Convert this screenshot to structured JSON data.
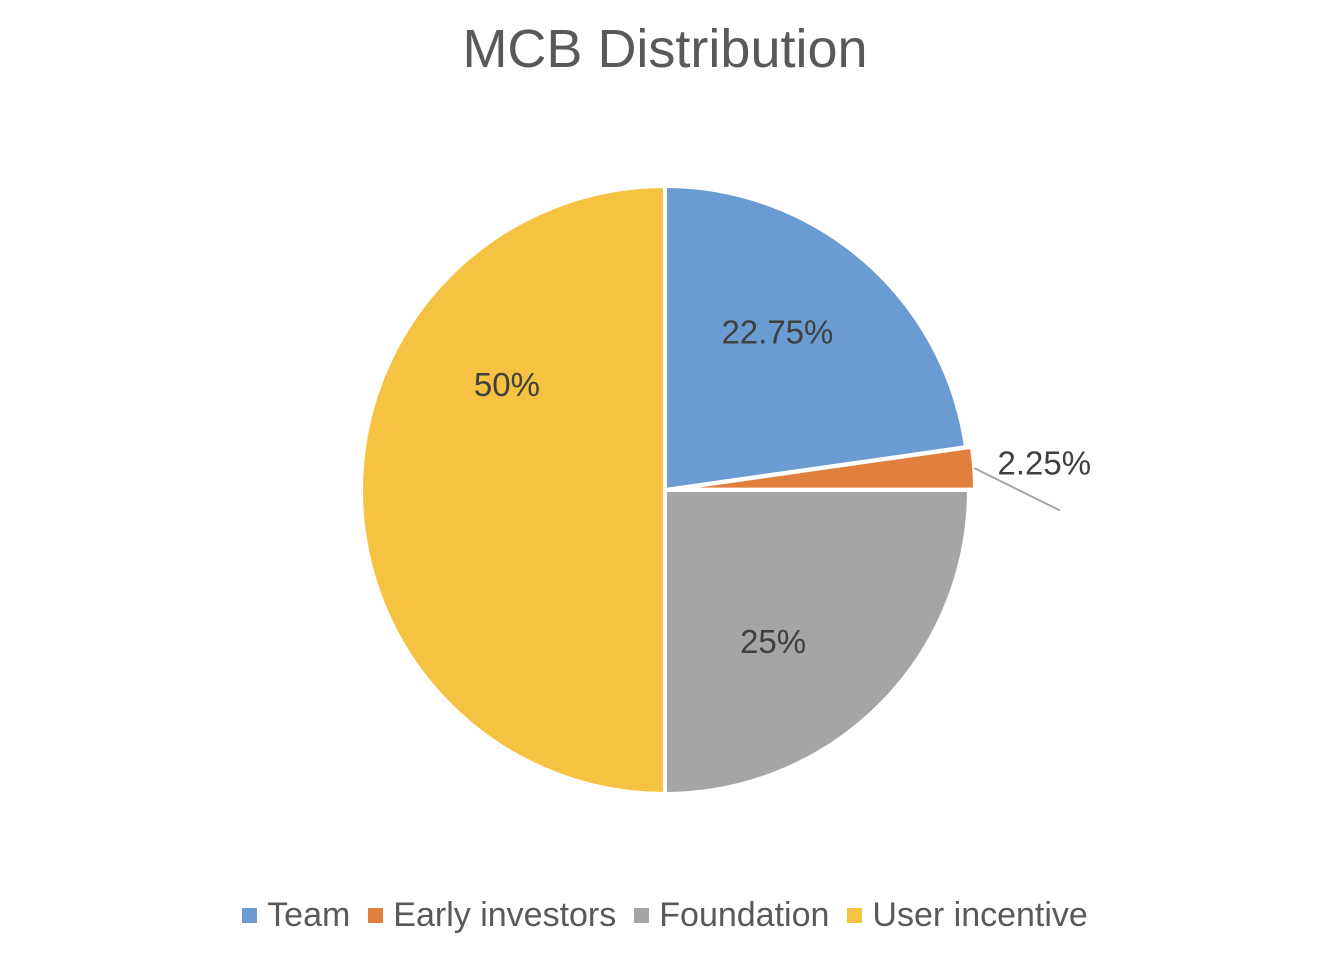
{
  "chart_data": {
    "type": "pie",
    "title": "MCB Distribution",
    "unit": "%",
    "slices": [
      {
        "name": "Team",
        "value": 22.75,
        "label": "22.75%",
        "color": "#6A9BD1"
      },
      {
        "name": "Early investors",
        "value": 2.25,
        "label": "2.25%",
        "color": "#E07F3E"
      },
      {
        "name": "Foundation",
        "value": 25,
        "label": "25%",
        "color": "#A5A5A5"
      },
      {
        "name": "User incentive",
        "value": 50,
        "label": "50%",
        "color": "#F5C242"
      }
    ],
    "start_angle": "12 o'clock",
    "direction": "clockwise",
    "exploded": "Early investors",
    "legend_position": "bottom"
  }
}
